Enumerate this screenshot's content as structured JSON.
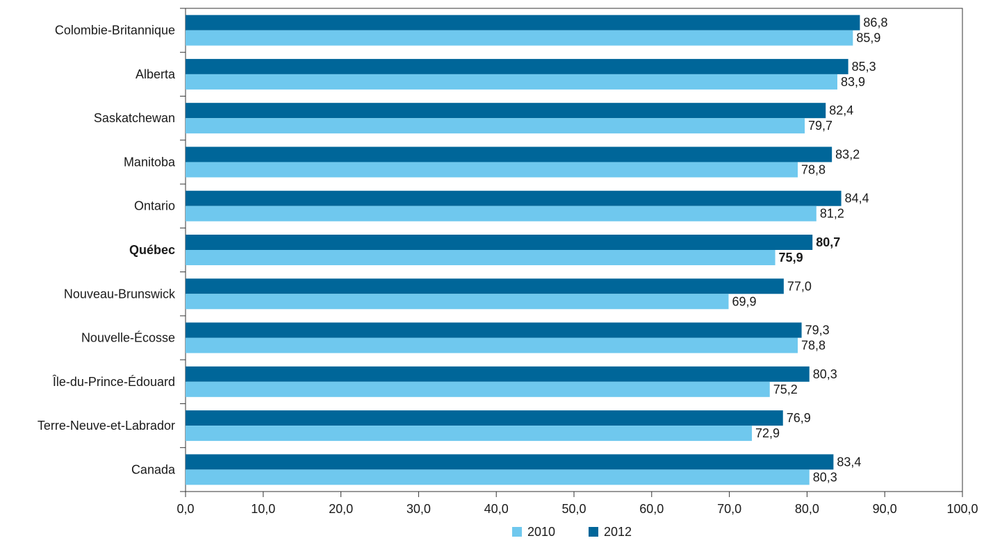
{
  "chart_data": {
    "type": "bar",
    "orientation": "horizontal",
    "categories": [
      "Colombie-Britannique",
      "Alberta",
      "Saskatchewan",
      "Manitoba",
      "Ontario",
      "Québec",
      "Nouveau-Brunswick",
      "Nouvelle-Écosse",
      "Île-du-Prince-Édouard",
      "Terre-Neuve-et-Labrador",
      "Canada"
    ],
    "highlight_category": "Québec",
    "series": [
      {
        "name": "2012",
        "color": "#006699",
        "values": [
          86.8,
          85.3,
          82.4,
          83.2,
          84.4,
          80.7,
          77.0,
          79.3,
          80.3,
          76.9,
          83.4
        ],
        "labels": [
          "86,8",
          "85,3",
          "82,4",
          "83,2",
          "84,4",
          "80,7",
          "77,0",
          "79,3",
          "80,3",
          "76,9",
          "83,4"
        ]
      },
      {
        "name": "2010",
        "color": "#6fc8ee",
        "values": [
          85.9,
          83.9,
          79.7,
          78.8,
          81.2,
          75.9,
          69.9,
          78.8,
          75.2,
          72.9,
          80.3
        ],
        "labels": [
          "85,9",
          "83,9",
          "79,7",
          "78,8",
          "81,2",
          "75,9",
          "69,9",
          "78,8",
          "75,2",
          "72,9",
          "80,3"
        ]
      }
    ],
    "xlim": [
      0,
      100
    ],
    "xticks": [
      "0,0",
      "10,0",
      "20,0",
      "30,0",
      "40,0",
      "50,0",
      "60,0",
      "70,0",
      "80,0",
      "90,0",
      "100,0"
    ],
    "grid": false,
    "legend": {
      "position": "bottom",
      "items": [
        {
          "name": "2010",
          "color": "#6fc8ee"
        },
        {
          "name": "2012",
          "color": "#006699"
        }
      ]
    },
    "title": "",
    "xlabel": "",
    "ylabel": ""
  }
}
